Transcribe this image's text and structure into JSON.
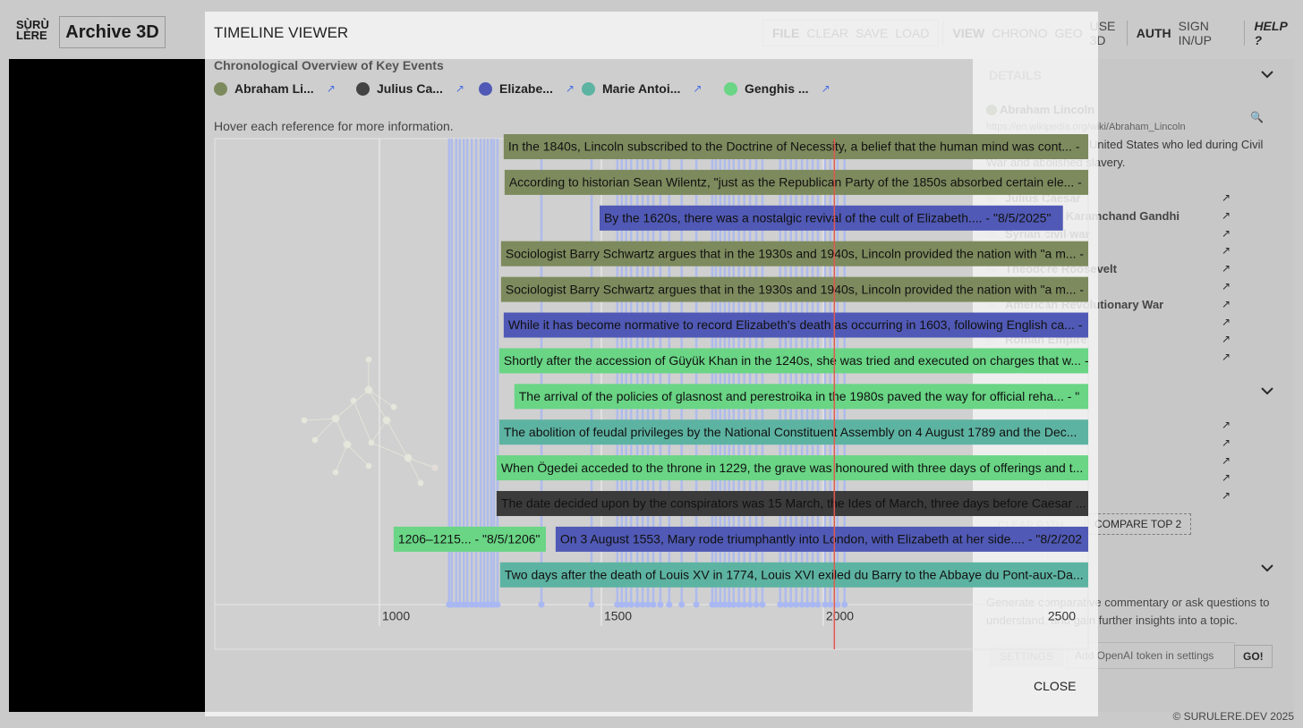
{
  "app": {
    "logo": [
      "SÙRÙ",
      "LÈRE"
    ],
    "title": "Archive 3D",
    "menu": [
      [
        "FILE",
        "CLEAR",
        "SAVE",
        "LOAD"
      ],
      [
        "VIEW",
        "CHRONO",
        "GEO",
        "USE 3D"
      ],
      [
        "AUTH",
        "SIGN IN/UP"
      ],
      [
        "HELP ?"
      ]
    ],
    "details": {
      "heading": "DETAILS",
      "name": "Abraham Lincoln",
      "url": "https://en.wikipedia.org/wiki/Abraham_Lincoln",
      "description": [
        "United States who led during Civil",
        "War and abolished slavery."
      ],
      "related": [
        "Julius Caesar",
        "Mohandas Karamchand Gandhi",
        "Syrian civil war",
        null,
        "Theodore Roosevelt",
        null,
        "American Revolutionary War",
        null,
        "Roman Empire",
        null
      ],
      "clear_path": "CLEAR PATH",
      "compare": "COMPARE TOP 2",
      "ai_text": [
        "Generate comparative commentary or ask questions to",
        "understand, and gain further insights into a topic."
      ],
      "settings": "SETTINGS",
      "token_placeholder": "Add OpenAI token in settings",
      "go": "GO!"
    },
    "footer": "© SURULERE.DEV 2025"
  },
  "link_icon": "↗",
  "modal": {
    "title": "TIMELINE VIEWER",
    "subtitle": "Chronological Overview of Key Events",
    "legend": [
      {
        "name": "Abraham Li...",
        "color": "#7d8a5d"
      },
      {
        "name": "Julius Ca...",
        "color": "#434343"
      },
      {
        "name": "Elizabe...",
        "color": "#5059b5"
      },
      {
        "name": "Marie Antoi...",
        "color": "#5db3a2"
      },
      {
        "name": "Genghis ...",
        "color": "#69d585"
      }
    ],
    "hint": "Hover each reference for more information.",
    "close": "CLOSE"
  },
  "chart_data": {
    "type": "timeline",
    "xlim": [
      629,
      2597
    ],
    "xticks": [
      1000,
      1500,
      2000,
      2500
    ],
    "now": 2025,
    "now_color": "#e2584f",
    "marker_color": "#a9b8f2",
    "markers": [
      1157,
      1163,
      1173,
      1181,
      1190,
      1198,
      1208,
      1218,
      1228,
      1236,
      1244,
      1252,
      1258,
      1266,
      1365,
      1478,
      1536,
      1546,
      1556,
      1567,
      1581,
      1593,
      1605,
      1617,
      1633,
      1653,
      1681,
      1714,
      1750,
      1758,
      1768,
      1778,
      1788,
      1798,
      1810,
      1822,
      1835,
      1849,
      1863,
      1903,
      1915,
      1927,
      1939,
      1952,
      1964,
      1976,
      1988,
      2004,
      2016,
      2032,
      2048
    ],
    "rows": [
      [
        {
          "label": "In the 1840s, Lincoln subscribed to the Doctrine of Necessity, a belief that the human mind was cont... -",
          "color": "#7d8a5d",
          "start": 1280
        }
      ],
      [
        {
          "label": "According to historian Sean Wilentz, \"just as the Republican Party of the 1850s absorbed certain ele... -",
          "color": "#7d8a5d",
          "start": 1282
        }
      ],
      [
        {
          "label": "By the 1620s, there was a nostalgic revival of the cult of Elizabeth.... - \"8/5/2025\"",
          "color": "#5059b5",
          "start": 1496,
          "end": 2540
        }
      ],
      [
        {
          "label": "Sociologist Barry Schwartz argues that in the 1930s and 1940s, Lincoln provided the nation with \"a m... -",
          "color": "#7d8a5d",
          "start": 1274
        }
      ],
      [
        {
          "label": "Sociologist Barry Schwartz argues that in the 1930s and 1940s, Lincoln provided the nation with \"a m... -",
          "color": "#7d8a5d",
          "start": 1274
        }
      ],
      [
        {
          "label": "While it has become normative to record Elizabeth's death as occurring in 1603, following English ca... -",
          "color": "#5059b5",
          "start": 1280
        }
      ],
      [
        {
          "label": "Shortly after the accession of Güyük Khan in the 1240s, she was tried and executed on charges that w... -",
          "color": "#69d585",
          "start": 1270
        }
      ],
      [
        {
          "label": "The arrival of the policies of glasnost and perestroika in the 1980s paved the way for official reha... - \"",
          "color": "#69d585",
          "start": 1304
        }
      ],
      [
        {
          "label": "The abolition of feudal privileges by the National Constituent Assembly on 4 August 1789 and the Dec...",
          "color": "#5db3a2",
          "start": 1270
        }
      ],
      [
        {
          "label": "When Ögedei acceded to the throne in 1229, the grave was honoured with three days of offerings and t...",
          "color": "#69d585",
          "start": 1264
        }
      ],
      [
        {
          "label": "The date decided upon by the conspirators was 15 March, the Ides of March, three days before Caesar ...",
          "color": "#3b3b3b",
          "start": 1264
        }
      ],
      [
        {
          "label": "1206–1215... - \"8/5/1206\"",
          "color": "#69d585",
          "start": 1032,
          "end": 1375
        },
        {
          "label": "On 3 August 1553, Mary rode triumphantly into London, with Elizabeth at her side.... - \"8/2/202",
          "color": "#5059b5",
          "start": 1397
        }
      ],
      [
        {
          "label": "Two days after the death of Louis XV in 1774, Louis XVI exiled du Barry to the Abbaye du Pont-aux-Da...",
          "color": "#5db3a2",
          "start": 1272
        }
      ]
    ]
  }
}
